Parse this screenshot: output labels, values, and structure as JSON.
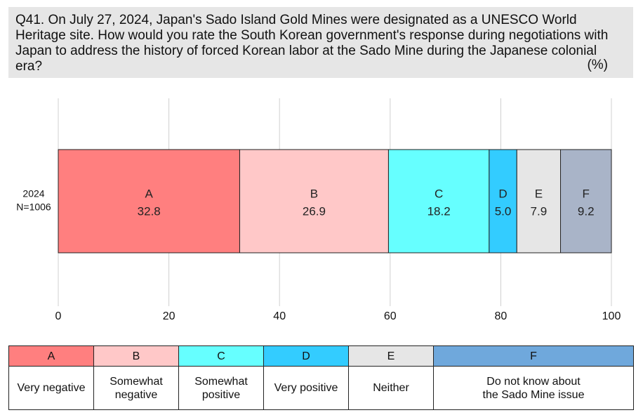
{
  "question": {
    "text": "Q41. On July 27, 2024, Japan's Sado Island Gold Mines were designated as a UNESCO World Heritage site. How would you rate the South Korean government's response during negotiations with Japan to address the history of forced Korean labor at the Sado Mine during the Japanese colonial era?",
    "unit": "(%)"
  },
  "chart_data": {
    "type": "bar",
    "orientation": "horizontal",
    "stacked": true,
    "categories": [
      "2024\nN=1006"
    ],
    "series": [
      {
        "name": "A",
        "values": [
          32.8
        ],
        "color": "#ff7f7f"
      },
      {
        "name": "B",
        "values": [
          26.9
        ],
        "color": "#ffc8c8"
      },
      {
        "name": "C",
        "values": [
          18.2
        ],
        "color": "#66ffff"
      },
      {
        "name": "D",
        "values": [
          5.0
        ],
        "color": "#33ccff"
      },
      {
        "name": "E",
        "values": [
          7.9
        ],
        "color": "#e6e6e6"
      },
      {
        "name": "F",
        "values": [
          9.2
        ],
        "color": "#a9b4c8"
      }
    ],
    "x_ticks": [
      "0",
      "20",
      "40",
      "60",
      "80",
      "100"
    ],
    "xlim": [
      0,
      100
    ],
    "grid": true
  },
  "legend": [
    {
      "key": "A",
      "label": "Very negative",
      "color": "#ff7f7f"
    },
    {
      "key": "B",
      "label": "Somewhat\nnegative",
      "color": "#ffc8c8"
    },
    {
      "key": "C",
      "label": "Somewhat\npositive",
      "color": "#66ffff"
    },
    {
      "key": "D",
      "label": "Very positive",
      "color": "#33ccff"
    },
    {
      "key": "E",
      "label": "Neither",
      "color": "#e6e6e6"
    },
    {
      "key": "F",
      "label": "Do not know about\nthe Sado Mine issue",
      "color": "#6fa8dc"
    }
  ]
}
